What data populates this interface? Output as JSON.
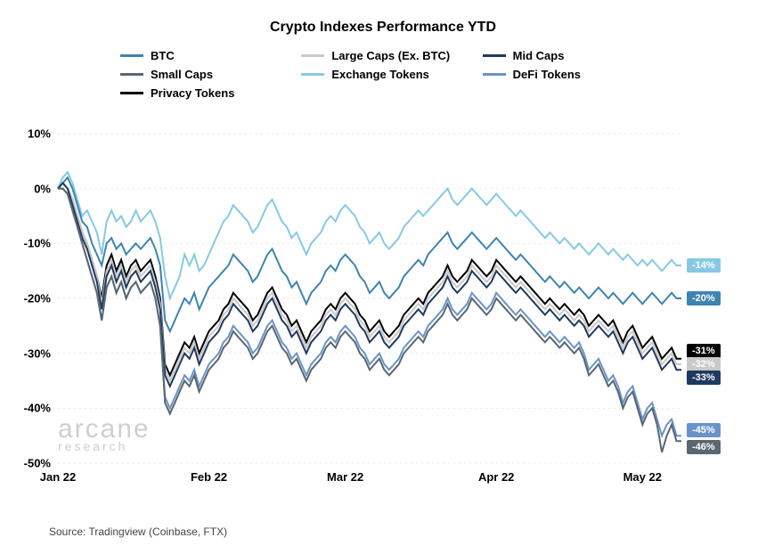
{
  "title": "Crypto Indexes Performance YTD",
  "title_fontsize": 16,
  "background_color": "#ffffff",
  "grid_color": "#e6e6e6",
  "source": "Source: Tradingview (Coinbase, FTX)",
  "watermark": {
    "main": "arcane",
    "sub": "research"
  },
  "legend": {
    "items": [
      {
        "label": "BTC",
        "color": "#3e84b0"
      },
      {
        "label": "Large Caps (Ex. BTC)",
        "color": "#c9c9c9"
      },
      {
        "label": "Mid Caps",
        "color": "#1f3a5f"
      },
      {
        "label": "Small Caps",
        "color": "#5a6670"
      },
      {
        "label": "Exchange Tokens",
        "color": "#86c9e6"
      },
      {
        "label": "DeFi Tokens",
        "color": "#6a93c9"
      },
      {
        "label": "Privacy Tokens",
        "color": "#000000"
      }
    ]
  },
  "chart": {
    "type": "line",
    "line_width": 2,
    "x_axis": {
      "ticks": [
        0,
        31,
        59,
        90,
        120
      ],
      "labels": [
        "Jan 22",
        "Feb 22",
        "Mar 22",
        "Apr 22",
        "May 22"
      ],
      "range": [
        0,
        128
      ]
    },
    "y_axis": {
      "range": [
        -50,
        10
      ],
      "ticks": [
        10,
        0,
        -10,
        -20,
        -30,
        -40,
        -50
      ],
      "labels": [
        "10%",
        "0%",
        "-10%",
        "-20%",
        "-30%",
        "-40%",
        "-50%"
      ]
    },
    "series": [
      {
        "name": "Exchange Tokens",
        "color": "#86c9e6",
        "end_label": "-14%",
        "end_label_y": -14,
        "values": [
          0,
          2,
          3,
          1,
          -2,
          -5,
          -4,
          -6,
          -8,
          -12,
          -6,
          -4,
          -6,
          -5,
          -7,
          -6,
          -4,
          -6,
          -5,
          -4,
          -6,
          -9,
          -16,
          -20,
          -18,
          -16,
          -12,
          -14,
          -12,
          -15,
          -14,
          -12,
          -10,
          -8,
          -6,
          -5,
          -3,
          -4,
          -5,
          -6,
          -8,
          -7,
          -5,
          -3,
          -2,
          -4,
          -6,
          -7,
          -9,
          -8,
          -10,
          -12,
          -10,
          -9,
          -8,
          -6,
          -5,
          -6,
          -4,
          -3,
          -4,
          -5,
          -7,
          -8,
          -10,
          -9,
          -8,
          -10,
          -11,
          -10,
          -9,
          -7,
          -6,
          -5,
          -4,
          -5,
          -4,
          -3,
          -2,
          -1,
          0,
          -2,
          -3,
          -2,
          -1,
          0,
          -1,
          -2,
          -3,
          -2,
          -1,
          -2,
          -3,
          -4,
          -5,
          -4,
          -5,
          -6,
          -7,
          -8,
          -9,
          -8,
          -9,
          -10,
          -9,
          -10,
          -11,
          -10,
          -11,
          -12,
          -11,
          -10,
          -11,
          -12,
          -11,
          -12,
          -13,
          -12,
          -13,
          -14,
          -13,
          -14,
          -13,
          -14,
          -15,
          -14,
          -13,
          -14,
          -14
        ]
      },
      {
        "name": "BTC",
        "color": "#3e84b0",
        "end_label": "-20%",
        "end_label_y": -20,
        "values": [
          0,
          1,
          2,
          0,
          -3,
          -6,
          -7,
          -10,
          -12,
          -14,
          -10,
          -9,
          -11,
          -10,
          -12,
          -11,
          -10,
          -11,
          -10,
          -9,
          -11,
          -14,
          -24,
          -26,
          -24,
          -22,
          -20,
          -21,
          -19,
          -22,
          -20,
          -18,
          -17,
          -16,
          -15,
          -14,
          -12,
          -13,
          -14,
          -15,
          -17,
          -16,
          -14,
          -12,
          -11,
          -13,
          -15,
          -16,
          -18,
          -17,
          -19,
          -21,
          -19,
          -18,
          -17,
          -15,
          -14,
          -15,
          -13,
          -12,
          -13,
          -14,
          -16,
          -17,
          -19,
          -18,
          -17,
          -19,
          -20,
          -19,
          -18,
          -16,
          -15,
          -14,
          -13,
          -14,
          -12,
          -11,
          -10,
          -9,
          -8,
          -10,
          -11,
          -10,
          -9,
          -8,
          -9,
          -10,
          -11,
          -10,
          -9,
          -10,
          -11,
          -12,
          -13,
          -12,
          -13,
          -14,
          -15,
          -16,
          -17,
          -16,
          -17,
          -18,
          -17,
          -18,
          -19,
          -18,
          -19,
          -20,
          -19,
          -18,
          -19,
          -20,
          -19,
          -20,
          -21,
          -20,
          -19,
          -20,
          -21,
          -20,
          -19,
          -20,
          -21,
          -20,
          -19,
          -20,
          -20
        ]
      },
      {
        "name": "Privacy Tokens",
        "color": "#000000",
        "end_label": "-31%",
        "end_label_y": -29.5,
        "values": [
          0,
          1,
          0,
          -2,
          -5,
          -8,
          -10,
          -13,
          -16,
          -20,
          -14,
          -12,
          -15,
          -13,
          -16,
          -14,
          -13,
          -15,
          -14,
          -13,
          -16,
          -20,
          -32,
          -34,
          -32,
          -30,
          -28,
          -29,
          -27,
          -30,
          -28,
          -26,
          -25,
          -24,
          -22,
          -21,
          -19,
          -20,
          -21,
          -22,
          -24,
          -23,
          -21,
          -19,
          -18,
          -20,
          -22,
          -23,
          -25,
          -24,
          -26,
          -28,
          -26,
          -25,
          -24,
          -22,
          -21,
          -22,
          -20,
          -19,
          -20,
          -21,
          -23,
          -24,
          -26,
          -25,
          -24,
          -26,
          -27,
          -26,
          -25,
          -23,
          -22,
          -21,
          -20,
          -21,
          -19,
          -18,
          -17,
          -16,
          -14,
          -16,
          -17,
          -16,
          -15,
          -13,
          -14,
          -15,
          -16,
          -15,
          -13,
          -14,
          -15,
          -16,
          -17,
          -16,
          -17,
          -18,
          -19,
          -20,
          -21,
          -20,
          -21,
          -22,
          -21,
          -22,
          -23,
          -22,
          -23,
          -25,
          -24,
          -23,
          -24,
          -25,
          -24,
          -26,
          -28,
          -26,
          -25,
          -27,
          -29,
          -28,
          -27,
          -29,
          -31,
          -30,
          -29,
          -31,
          -31
        ]
      },
      {
        "name": "Large Caps (Ex. BTC)",
        "color": "#c9c9c9",
        "end_label": "-32%",
        "end_label_y": -32,
        "values": [
          0,
          1,
          0,
          -2,
          -5,
          -8,
          -10,
          -13,
          -16,
          -21,
          -15,
          -13,
          -16,
          -14,
          -17,
          -15,
          -14,
          -16,
          -15,
          -14,
          -17,
          -21,
          -33,
          -35,
          -33,
          -31,
          -29,
          -30,
          -28,
          -31,
          -29,
          -27,
          -26,
          -25,
          -23,
          -22,
          -20,
          -21,
          -22,
          -23,
          -25,
          -24,
          -22,
          -20,
          -19,
          -21,
          -23,
          -24,
          -26,
          -25,
          -27,
          -29,
          -27,
          -26,
          -25,
          -23,
          -22,
          -23,
          -21,
          -20,
          -21,
          -22,
          -24,
          -25,
          -27,
          -26,
          -25,
          -27,
          -28,
          -27,
          -26,
          -24,
          -23,
          -22,
          -21,
          -22,
          -20,
          -19,
          -18,
          -17,
          -15,
          -17,
          -18,
          -17,
          -16,
          -14,
          -15,
          -16,
          -17,
          -16,
          -14,
          -15,
          -16,
          -17,
          -18,
          -17,
          -18,
          -19,
          -20,
          -21,
          -22,
          -21,
          -22,
          -23,
          -22,
          -23,
          -24,
          -23,
          -24,
          -26,
          -25,
          -24,
          -25,
          -26,
          -25,
          -27,
          -29,
          -27,
          -26,
          -28,
          -30,
          -29,
          -28,
          -30,
          -32,
          -31,
          -30,
          -32,
          -32
        ]
      },
      {
        "name": "Mid Caps",
        "color": "#1f3a5f",
        "end_label": "-33%",
        "end_label_y": -34.5,
        "values": [
          0,
          1,
          0,
          -3,
          -6,
          -9,
          -11,
          -14,
          -17,
          -22,
          -16,
          -14,
          -17,
          -15,
          -18,
          -16,
          -15,
          -17,
          -16,
          -15,
          -18,
          -22,
          -34,
          -36,
          -34,
          -32,
          -30,
          -31,
          -29,
          -32,
          -30,
          -28,
          -27,
          -26,
          -24,
          -23,
          -21,
          -22,
          -23,
          -24,
          -26,
          -25,
          -23,
          -21,
          -20,
          -22,
          -24,
          -25,
          -27,
          -26,
          -28,
          -30,
          -28,
          -27,
          -26,
          -24,
          -23,
          -24,
          -22,
          -21,
          -22,
          -23,
          -25,
          -26,
          -28,
          -27,
          -26,
          -28,
          -29,
          -28,
          -27,
          -25,
          -24,
          -23,
          -22,
          -23,
          -21,
          -20,
          -19,
          -18,
          -16,
          -18,
          -19,
          -18,
          -17,
          -15,
          -16,
          -17,
          -18,
          -17,
          -15,
          -16,
          -17,
          -18,
          -19,
          -18,
          -19,
          -20,
          -21,
          -22,
          -23,
          -22,
          -23,
          -24,
          -23,
          -24,
          -25,
          -24,
          -25,
          -27,
          -26,
          -25,
          -26,
          -27,
          -26,
          -28,
          -30,
          -28,
          -27,
          -29,
          -31,
          -30,
          -29,
          -31,
          -33,
          -32,
          -31,
          -33,
          -33
        ]
      },
      {
        "name": "DeFi Tokens",
        "color": "#6a93c9",
        "end_label": "-45%",
        "end_label_y": -44,
        "values": [
          0,
          0,
          -1,
          -4,
          -7,
          -10,
          -13,
          -16,
          -19,
          -24,
          -18,
          -16,
          -19,
          -17,
          -20,
          -18,
          -17,
          -19,
          -18,
          -17,
          -20,
          -25,
          -38,
          -40,
          -38,
          -36,
          -34,
          -35,
          -33,
          -36,
          -34,
          -32,
          -31,
          -30,
          -28,
          -27,
          -25,
          -26,
          -27,
          -28,
          -30,
          -29,
          -27,
          -25,
          -24,
          -26,
          -28,
          -29,
          -31,
          -30,
          -32,
          -34,
          -32,
          -31,
          -30,
          -28,
          -27,
          -28,
          -26,
          -25,
          -26,
          -27,
          -29,
          -30,
          -32,
          -31,
          -30,
          -32,
          -33,
          -32,
          -31,
          -29,
          -28,
          -27,
          -26,
          -27,
          -25,
          -24,
          -23,
          -22,
          -20,
          -22,
          -23,
          -22,
          -21,
          -19,
          -20,
          -21,
          -22,
          -21,
          -19,
          -20,
          -21,
          -22,
          -23,
          -22,
          -23,
          -24,
          -25,
          -26,
          -27,
          -26,
          -27,
          -28,
          -27,
          -28,
          -29,
          -28,
          -30,
          -33,
          -32,
          -31,
          -33,
          -35,
          -34,
          -36,
          -39,
          -37,
          -36,
          -39,
          -42,
          -40,
          -39,
          -42,
          -45,
          -43,
          -42,
          -45,
          -45
        ]
      },
      {
        "name": "Small Caps",
        "color": "#5a6670",
        "end_label": "-46%",
        "end_label_y": -47,
        "values": [
          0,
          0,
          -1,
          -4,
          -7,
          -10,
          -13,
          -16,
          -19,
          -24,
          -18,
          -16,
          -19,
          -17,
          -20,
          -18,
          -17,
          -19,
          -18,
          -17,
          -20,
          -25,
          -39,
          -41,
          -39,
          -37,
          -35,
          -36,
          -34,
          -37,
          -35,
          -33,
          -32,
          -31,
          -29,
          -28,
          -26,
          -27,
          -28,
          -29,
          -31,
          -30,
          -28,
          -26,
          -25,
          -27,
          -29,
          -30,
          -32,
          -31,
          -33,
          -35,
          -33,
          -32,
          -31,
          -29,
          -28,
          -29,
          -27,
          -26,
          -27,
          -28,
          -30,
          -31,
          -33,
          -32,
          -31,
          -33,
          -34,
          -33,
          -32,
          -30,
          -29,
          -28,
          -27,
          -28,
          -26,
          -25,
          -24,
          -23,
          -21,
          -23,
          -24,
          -23,
          -22,
          -20,
          -21,
          -22,
          -23,
          -22,
          -20,
          -21,
          -22,
          -23,
          -24,
          -23,
          -24,
          -25,
          -26,
          -27,
          -28,
          -27,
          -28,
          -29,
          -28,
          -29,
          -30,
          -29,
          -31,
          -34,
          -33,
          -32,
          -34,
          -36,
          -35,
          -37,
          -40,
          -38,
          -37,
          -40,
          -43,
          -41,
          -40,
          -43,
          -48,
          -45,
          -43,
          -46,
          -46
        ]
      }
    ]
  }
}
